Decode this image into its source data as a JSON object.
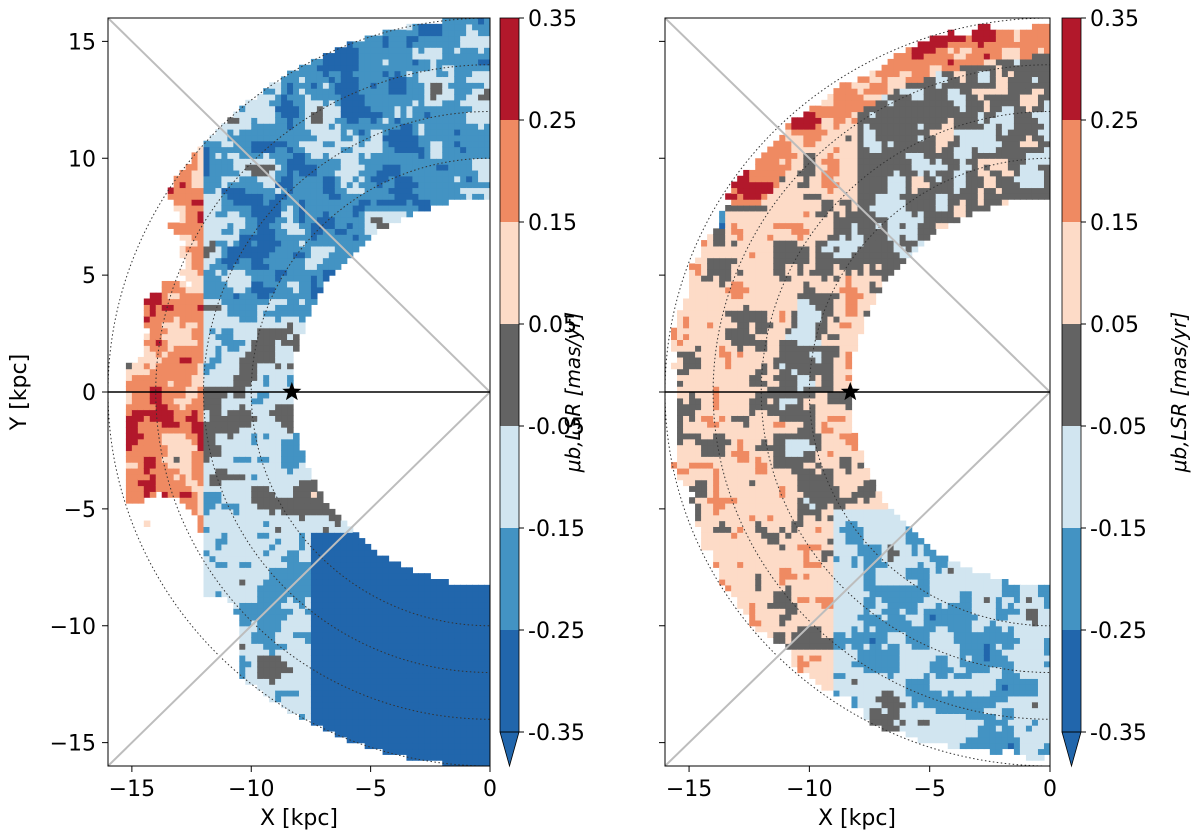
{
  "chart_data": [
    {
      "type": "heatmap",
      "xlabel": "X [kpc]",
      "ylabel": "Y [kpc]",
      "xlim": [
        -16,
        0
      ],
      "ylim": [
        -16,
        16
      ],
      "xticks": [
        -15,
        -10,
        -5,
        0
      ],
      "yticks": [
        -15,
        -10,
        -5,
        0,
        5,
        10,
        15
      ],
      "sun_position": {
        "x": -8.3,
        "y": 0
      },
      "rings_kpc": [
        10,
        12,
        14,
        16
      ],
      "colorbar": {
        "label": "μb,LSR [mas/yr]",
        "ticks": [
          "0.35",
          "0.25",
          "0.15",
          "0.05",
          "-0.05",
          "-0.15",
          "-0.25",
          "-0.35"
        ]
      },
      "dominant_levels_by_region": [
        {
          "region": "far outer disc x<-12",
          "level": "0.15 to 0.35 (red)"
        },
        {
          "region": "inner arc near Sun",
          "level": "-0.05 to -0.15 (light blue)"
        },
        {
          "region": "lower right y<-6",
          "level": "< -0.25 (dark blue)"
        },
        {
          "region": "upper right arm",
          "level": "-0.15 to -0.35 (blue)"
        }
      ]
    },
    {
      "type": "heatmap",
      "xlabel": "X [kpc]",
      "ylabel": "",
      "xlim": [
        -16,
        0
      ],
      "ylim": [
        -16,
        16
      ],
      "xticks": [
        -15,
        -10,
        -5,
        0
      ],
      "yticks": [],
      "sun_position": {
        "x": -8.3,
        "y": 0
      },
      "rings_kpc": [
        10,
        12,
        14,
        16
      ],
      "colorbar": {
        "label": "μb,LSR [mas/yr]",
        "ticks": [
          "0.35",
          "0.25",
          "0.15",
          "0.05",
          "-0.05",
          "-0.15",
          "-0.25",
          "-0.35"
        ]
      },
      "dominant_levels_by_region": [
        {
          "region": "most of annulus",
          "level": "0.05 to 0.15 (light pink)"
        },
        {
          "region": "outer edge top",
          "level": "0.25 to 0.35 (red)"
        },
        {
          "region": "anti-centre band",
          "level": "-0.05 to 0.05 (grey)"
        },
        {
          "region": "lower right",
          "level": "-0.15 to -0.25 (blue)"
        }
      ]
    }
  ],
  "colors": {
    "levels": [
      "#2166ac",
      "#4393c3",
      "#d1e5f0",
      "#636363",
      "#fddbc7",
      "#f4a582",
      "#d6604d",
      "#b2182b"
    ],
    "bands": [
      "#2166ac",
      "#4393c3",
      "#d1e5f0",
      "#636363",
      "#fddbc7",
      "#ef8a62",
      "#b2182b"
    ],
    "ring": "#333333",
    "diagonal": "#bdbdbd",
    "axis": "#000000"
  }
}
